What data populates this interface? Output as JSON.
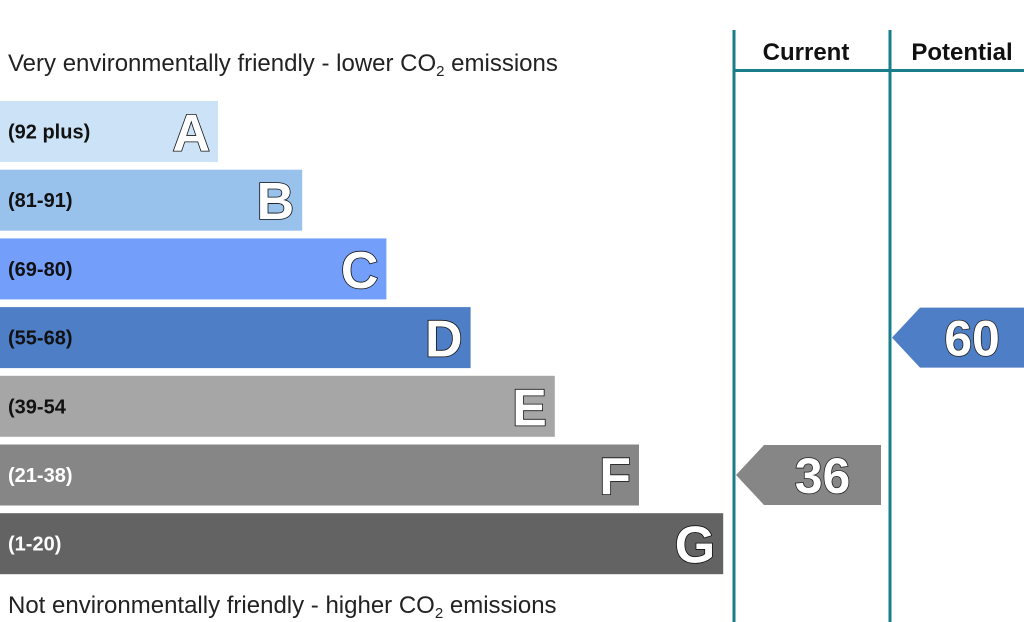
{
  "chart_data": {
    "type": "bar",
    "title_top_prefix": "Very environmentally friendly - lower CO",
    "title_top_sub": "2",
    "title_top_suffix": " emissions",
    "title_bottom_prefix": "Not environmentally friendly - higher CO",
    "title_bottom_sub": "2",
    "title_bottom_suffix": " emissions",
    "bands": [
      {
        "letter": "A",
        "range": "(92 plus)",
        "color": "#cce3f7",
        "text_color": "#111111"
      },
      {
        "letter": "B",
        "range": "(81-91)",
        "color": "#98c1ec",
        "text_color": "#111111"
      },
      {
        "letter": "C",
        "range": "(69-80)",
        "color": "#739ffa",
        "text_color": "#111111"
      },
      {
        "letter": "D",
        "range": "(55-68)",
        "color": "#4e7ec6",
        "text_color": "#111111"
      },
      {
        "letter": "E",
        "range": "(39-54",
        "color": "#a6a6a6",
        "text_color": "#111111"
      },
      {
        "letter": "F",
        "range": "(21-38)",
        "color": "#868686",
        "text_color": "#ffffff"
      },
      {
        "letter": "G",
        "range": "(1-20)",
        "color": "#636363",
        "text_color": "#ffffff"
      }
    ],
    "columns": [
      "Current",
      "Potential"
    ],
    "current": {
      "value": 36,
      "label": "36",
      "band": "F",
      "color": "#868686"
    },
    "potential": {
      "value": 60,
      "label": "60",
      "band": "D",
      "color": "#4e7ec6"
    },
    "divider_color": "#1a7d8c"
  }
}
